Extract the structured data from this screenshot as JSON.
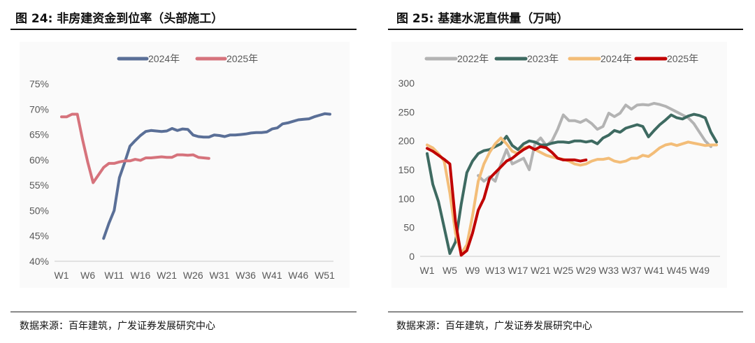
{
  "charts_meta": {
    "left_title": "图 24: 非房建资金到位率（头部施工）",
    "right_title": "图 25: 基建水泥直供量（万吨）",
    "source": "数据来源：百年建筑，广发证券发展研究中心"
  },
  "chart_data": [
    {
      "type": "line",
      "title": "图 24: 非房建资金到位率（头部施工）",
      "xlabel": "",
      "ylabel": "",
      "ylim": [
        40,
        75
      ],
      "yticks": [
        "40%",
        "45%",
        "50%",
        "55%",
        "60%",
        "65%",
        "70%",
        "75%"
      ],
      "xtick_labels": [
        "W1",
        "W6",
        "W11",
        "W16",
        "W21",
        "W26",
        "W31",
        "W36",
        "W41",
        "W46",
        "W51"
      ],
      "xtick_step": 5,
      "weeks": 52,
      "legend": "top",
      "grid": false,
      "series": [
        {
          "name": "2024年",
          "color": "#5a6f97",
          "start_week": 9,
          "values": [
            44.5,
            47.5,
            50,
            56.5,
            59.5,
            62.7,
            63.8,
            64.8,
            65.6,
            65.8,
            65.7,
            65.6,
            65.7,
            66.2,
            65.8,
            66.1,
            66,
            64.9,
            64.6,
            64.5,
            64.5,
            64.9,
            64.8,
            64.6,
            64.9,
            64.9,
            65,
            65.1,
            65.3,
            65.4,
            65.4,
            65.5,
            66.1,
            66.3,
            67.1,
            67.3,
            67.6,
            67.9,
            68,
            68.1,
            68.5,
            68.8,
            69.1,
            69
          ]
        },
        {
          "name": "2025年",
          "color": "#d6737c",
          "start_week": 1,
          "values": [
            68.5,
            68.5,
            69,
            69,
            64,
            59.5,
            55.5,
            57,
            58.5,
            59.3,
            59.3,
            59.6,
            59.8,
            59.8,
            60.1,
            59.9,
            60.4,
            60.4,
            60.5,
            60.6,
            60.5,
            60.5,
            61,
            61,
            60.9,
            61,
            60.5,
            60.4,
            60.3
          ]
        }
      ]
    },
    {
      "type": "line",
      "title": "图 25: 基建水泥直供量（万吨）",
      "xlabel": "",
      "ylabel": "",
      "ylim": [
        0,
        300
      ],
      "yticks": [
        "0",
        "50",
        "100",
        "150",
        "200",
        "250",
        "300"
      ],
      "xtick_labels": [
        "W1",
        "W5",
        "W9",
        "W13",
        "W17",
        "W21",
        "W25",
        "W29",
        "W33",
        "W37",
        "W41",
        "W45",
        "W49"
      ],
      "xtick_step": 4,
      "weeks": 52,
      "legend": "top",
      "grid": false,
      "series": [
        {
          "name": "2022年",
          "color": "#b3b3b3",
          "start_week": 10,
          "values": [
            140,
            130,
            138,
            130,
            160,
            185,
            160,
            165,
            170,
            150,
            195,
            205,
            192,
            200,
            220,
            245,
            235,
            235,
            232,
            237,
            230,
            220,
            225,
            248,
            242,
            248,
            262,
            255,
            262,
            263,
            262,
            265,
            263,
            260,
            255,
            250,
            245,
            240,
            230,
            215,
            200,
            190
          ]
        },
        {
          "name": "2023年",
          "color": "#3e6a61",
          "start_week": 1,
          "values": [
            178,
            125,
            95,
            50,
            5,
            25,
            90,
            145,
            165,
            178,
            183,
            185,
            190,
            195,
            208,
            192,
            185,
            195,
            200,
            198,
            193,
            193,
            196,
            198,
            198,
            197,
            200,
            200,
            198,
            200,
            195,
            205,
            210,
            218,
            215,
            222,
            225,
            228,
            225,
            207,
            218,
            228,
            236,
            245,
            240,
            238,
            243,
            246,
            244,
            240,
            215,
            198
          ]
        },
        {
          "name": "2024年",
          "color": "#f3bd78",
          "start_week": 1,
          "values": [
            193,
            188,
            178,
            165,
            110,
            40,
            5,
            20,
            70,
            130,
            160,
            180,
            195,
            205,
            195,
            182,
            178,
            188,
            190,
            185,
            180,
            175,
            172,
            170,
            168,
            165,
            160,
            158,
            160,
            165,
            168,
            168,
            170,
            165,
            163,
            165,
            170,
            170,
            175,
            173,
            180,
            188,
            193,
            195,
            192,
            195,
            198,
            196,
            194,
            192,
            193,
            193
          ]
        },
        {
          "name": "2025年",
          "color": "#c00000",
          "start_week": 1,
          "values": [
            187,
            182,
            175,
            168,
            160,
            60,
            2,
            10,
            40,
            80,
            100,
            135,
            145,
            155,
            165,
            170,
            178,
            185,
            190,
            185,
            190,
            188,
            180,
            170,
            167,
            167,
            167,
            165,
            167
          ]
        }
      ]
    }
  ]
}
